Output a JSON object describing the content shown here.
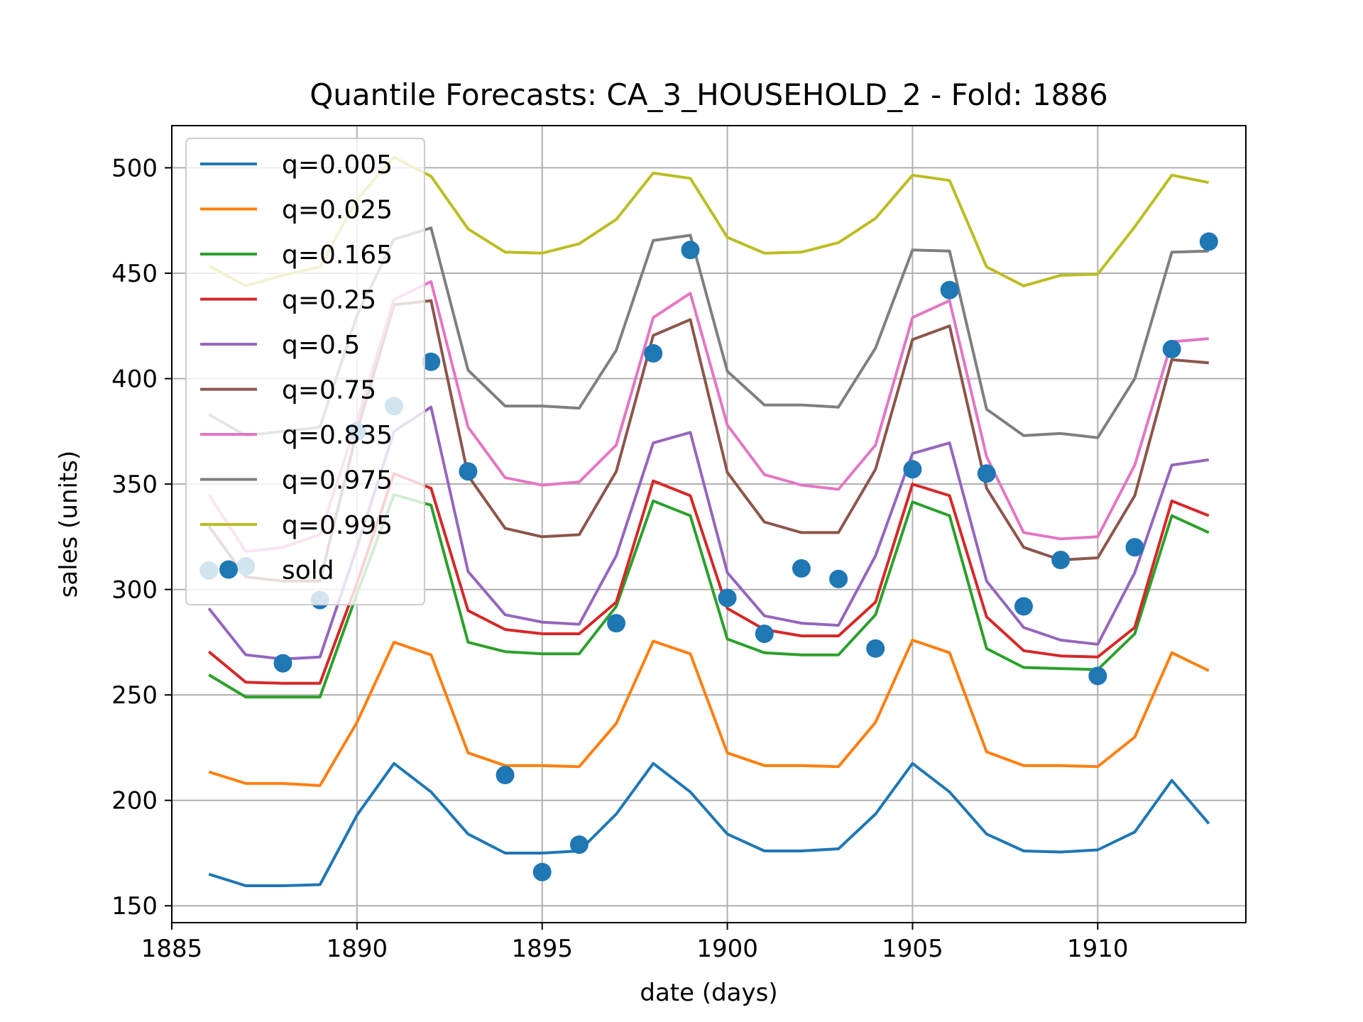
{
  "chart_data": {
    "type": "line",
    "title": "Quantile Forecasts: CA_3_HOUSEHOLD_2 - Fold: 1886",
    "xlabel": "date (days)",
    "ylabel": "sales (units)",
    "xlim": [
      1885,
      1914
    ],
    "ylim": [
      142,
      520
    ],
    "xticks": [
      1885,
      1890,
      1895,
      1900,
      1905,
      1910
    ],
    "yticks": [
      150,
      200,
      250,
      300,
      350,
      400,
      450,
      500
    ],
    "grid": true,
    "legend_position": "upper-left",
    "x": [
      1886,
      1887,
      1888,
      1889,
      1890,
      1891,
      1892,
      1893,
      1894,
      1895,
      1896,
      1897,
      1898,
      1899,
      1900,
      1901,
      1902,
      1903,
      1904,
      1905,
      1906,
      1907,
      1908,
      1909,
      1910,
      1911,
      1912,
      1913
    ],
    "series": [
      {
        "name": "q=0.005",
        "color": "#1f77b4",
        "values": [
          165,
          159.5,
          159.5,
          160,
          193,
          217.5,
          204,
          184,
          175,
          175,
          176,
          193.5,
          217.5,
          204,
          184,
          176,
          176,
          177,
          193.5,
          217.5,
          204,
          184,
          176,
          175.5,
          176.5,
          185,
          209.5,
          189
        ]
      },
      {
        "name": "q=0.025",
        "color": "#ff7f0e",
        "values": [
          213.5,
          208,
          208,
          207,
          237,
          275,
          269,
          222.5,
          216.5,
          216.5,
          216,
          236.5,
          275.5,
          269.5,
          222.5,
          216.5,
          216.5,
          216,
          237,
          276,
          270,
          223,
          216.5,
          216.5,
          216,
          230,
          270,
          261.5
        ]
      },
      {
        "name": "q=0.165",
        "color": "#2ca02c",
        "values": [
          259.5,
          249,
          249,
          249,
          298,
          345,
          340,
          275,
          270.5,
          269.5,
          269.5,
          292,
          342,
          335,
          276.5,
          270,
          269,
          269,
          288,
          341.5,
          335,
          272,
          263,
          262.5,
          262,
          279,
          335,
          327
        ]
      },
      {
        "name": "q=0.25",
        "color": "#d62728",
        "values": [
          270.5,
          256,
          255.5,
          255.5,
          303,
          355,
          348,
          290,
          281,
          279,
          279,
          294,
          351.5,
          344.5,
          291,
          281,
          278,
          278,
          294,
          350,
          344.5,
          287,
          271,
          268.5,
          268,
          282,
          342,
          335
        ]
      },
      {
        "name": "q=0.5",
        "color": "#9467bd",
        "values": [
          291,
          269,
          267,
          268,
          320,
          375,
          386.5,
          308.5,
          288,
          284.5,
          283.5,
          316,
          369.5,
          374.5,
          308,
          287.5,
          284,
          283,
          316,
          364.5,
          369.5,
          304,
          282,
          276,
          274,
          308,
          359,
          361.5
        ]
      },
      {
        "name": "q=0.75",
        "color": "#8c564b",
        "values": [
          330,
          306,
          304,
          304,
          375,
          435,
          437,
          354,
          329,
          325,
          326,
          356,
          420.5,
          428,
          355.5,
          332,
          327,
          327,
          357,
          418.5,
          425,
          348,
          320,
          314,
          315,
          344.5,
          409,
          407.5
        ]
      },
      {
        "name": "q=0.835",
        "color": "#e377c2",
        "values": [
          345,
          318,
          320,
          326,
          380,
          437.5,
          446,
          377,
          353,
          349.5,
          351,
          368.5,
          429,
          440.5,
          378,
          354.5,
          349.5,
          347.5,
          368.5,
          429,
          437,
          363,
          327,
          324,
          325,
          359,
          417.5,
          419
        ]
      },
      {
        "name": "q=0.975",
        "color": "#7f7f7f",
        "values": [
          383,
          373,
          375,
          377,
          430,
          466,
          471.5,
          404,
          387,
          387,
          386,
          413.5,
          465.5,
          468,
          403.5,
          387.5,
          387.5,
          386.5,
          414.5,
          461,
          460.5,
          385.5,
          373,
          374,
          372,
          400,
          460,
          460.5
        ]
      },
      {
        "name": "q=0.995",
        "color": "#bcbd22",
        "values": [
          453.5,
          444,
          449,
          453,
          485,
          505,
          496,
          471,
          460,
          459.5,
          464,
          475.5,
          497.5,
          495,
          467,
          459.5,
          460,
          464.5,
          476,
          496.5,
          494,
          453,
          444,
          449,
          449.5,
          472,
          496.5,
          493
        ]
      }
    ],
    "scatter": {
      "name": "sold",
      "color": "#1f77b4",
      "values": [
        309,
        311,
        265,
        295,
        375,
        387,
        408,
        356,
        212,
        166,
        179,
        284,
        412,
        461,
        296,
        279,
        310,
        305,
        272,
        357,
        442,
        355,
        292,
        314,
        259,
        320,
        414,
        465
      ]
    }
  }
}
